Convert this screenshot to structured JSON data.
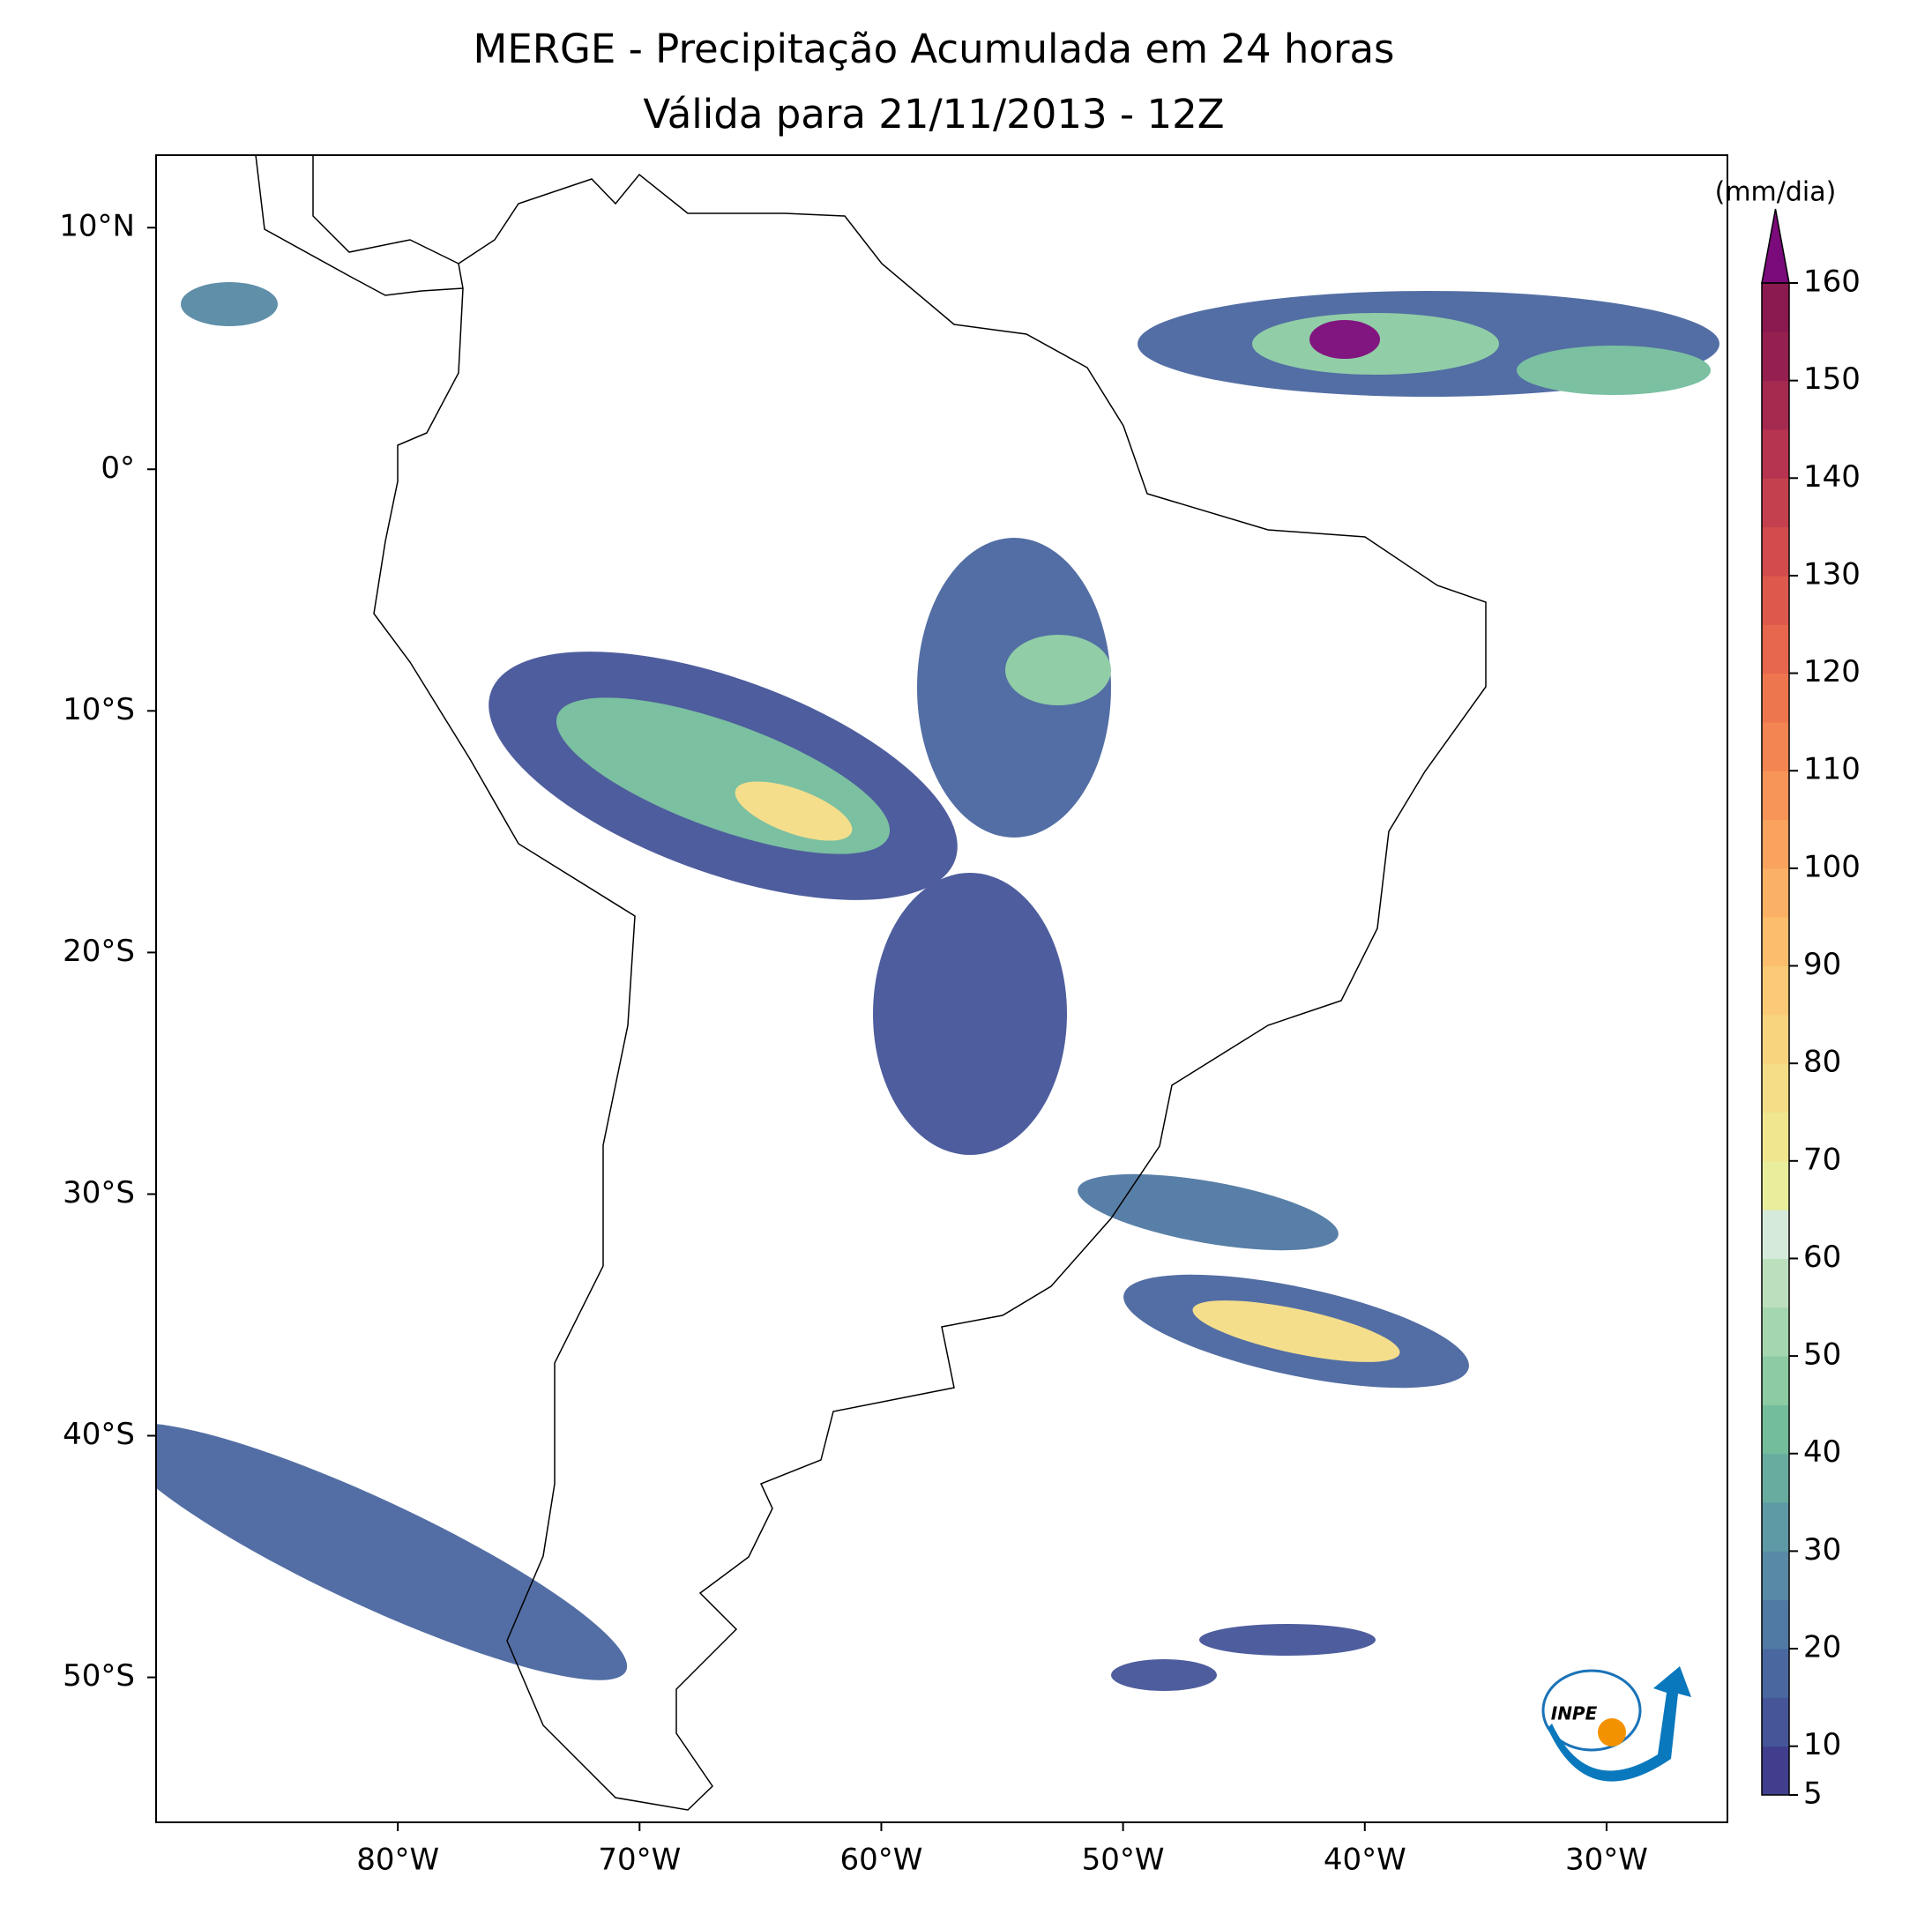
{
  "chart_data": {
    "type": "map",
    "title": "MERGE - Precipitação Acumulada em 24 horas",
    "subtitle": "Válida para 21/11/2013 - 12Z",
    "xlim": [
      -90,
      -25
    ],
    "ylim": [
      -56,
      13
    ],
    "xticks": [
      {
        "value": -80,
        "label": "80°W"
      },
      {
        "value": -70,
        "label": "70°W"
      },
      {
        "value": -60,
        "label": "60°W"
      },
      {
        "value": -50,
        "label": "50°W"
      },
      {
        "value": -40,
        "label": "40°W"
      },
      {
        "value": -30,
        "label": "30°W"
      }
    ],
    "yticks": [
      {
        "value": 10,
        "label": "10°N"
      },
      {
        "value": 0,
        "label": "0°"
      },
      {
        "value": -10,
        "label": "10°S"
      },
      {
        "value": -20,
        "label": "20°S"
      },
      {
        "value": -30,
        "label": "30°S"
      },
      {
        "value": -40,
        "label": "40°S"
      },
      {
        "value": -50,
        "label": "50°S"
      }
    ],
    "colorbar": {
      "label": "(mm/dia)",
      "levels": [
        5,
        10,
        15,
        20,
        25,
        30,
        35,
        40,
        45,
        50,
        55,
        60,
        65,
        70,
        75,
        80,
        85,
        90,
        95,
        100,
        105,
        110,
        115,
        120,
        125,
        130,
        135,
        140,
        145,
        150,
        155,
        160
      ],
      "colors": [
        "#413f8d",
        "#455598",
        "#4a67a0",
        "#5079a3",
        "#5889a5",
        "#5e99a6",
        "#68ab9f",
        "#74bd9c",
        "#8ccba3",
        "#a4d6af",
        "#bce0bd",
        "#d6eadb",
        "#e8ee9c",
        "#efe68f",
        "#f4dd86",
        "#f8d47e",
        "#fbca76",
        "#fcbe6c",
        "#fbb165",
        "#f9a35e",
        "#f69557",
        "#f28552",
        "#ed764e",
        "#e6674d",
        "#dd594c",
        "#d24c4d",
        "#c5404e",
        "#b6344f",
        "#a52a50",
        "#952050",
        "#8a1a4f"
      ],
      "extend_color": "#7b0a7a",
      "ticks": [
        5,
        10,
        20,
        30,
        40,
        50,
        60,
        70,
        80,
        90,
        100,
        110,
        120,
        130,
        140,
        150,
        160
      ]
    },
    "logo_text": "INPE"
  }
}
